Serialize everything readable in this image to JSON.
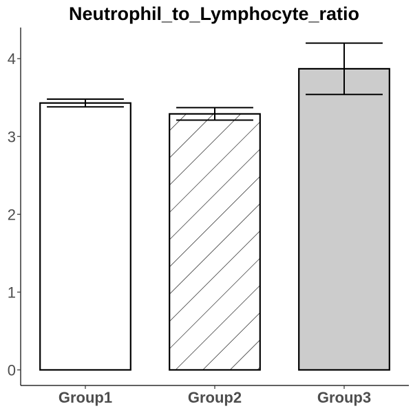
{
  "chart_data": {
    "type": "bar",
    "title": "Neutrophil_to_Lymphocyte_ratio",
    "xlabel": "",
    "ylabel": "",
    "categories": [
      "Group1",
      "Group2",
      "Group3"
    ],
    "values": [
      3.43,
      3.29,
      3.87
    ],
    "error": [
      {
        "low": 3.38,
        "high": 3.48
      },
      {
        "low": 3.21,
        "high": 3.37
      },
      {
        "low": 3.54,
        "high": 4.2
      }
    ],
    "fills": [
      "#ffffff",
      "hatch",
      "#cccccc"
    ],
    "yticks": [
      "0",
      "1",
      "2",
      "3",
      "4"
    ],
    "ylim": [
      -0.2,
      4.4
    ],
    "grid": false,
    "legend": "none"
  }
}
